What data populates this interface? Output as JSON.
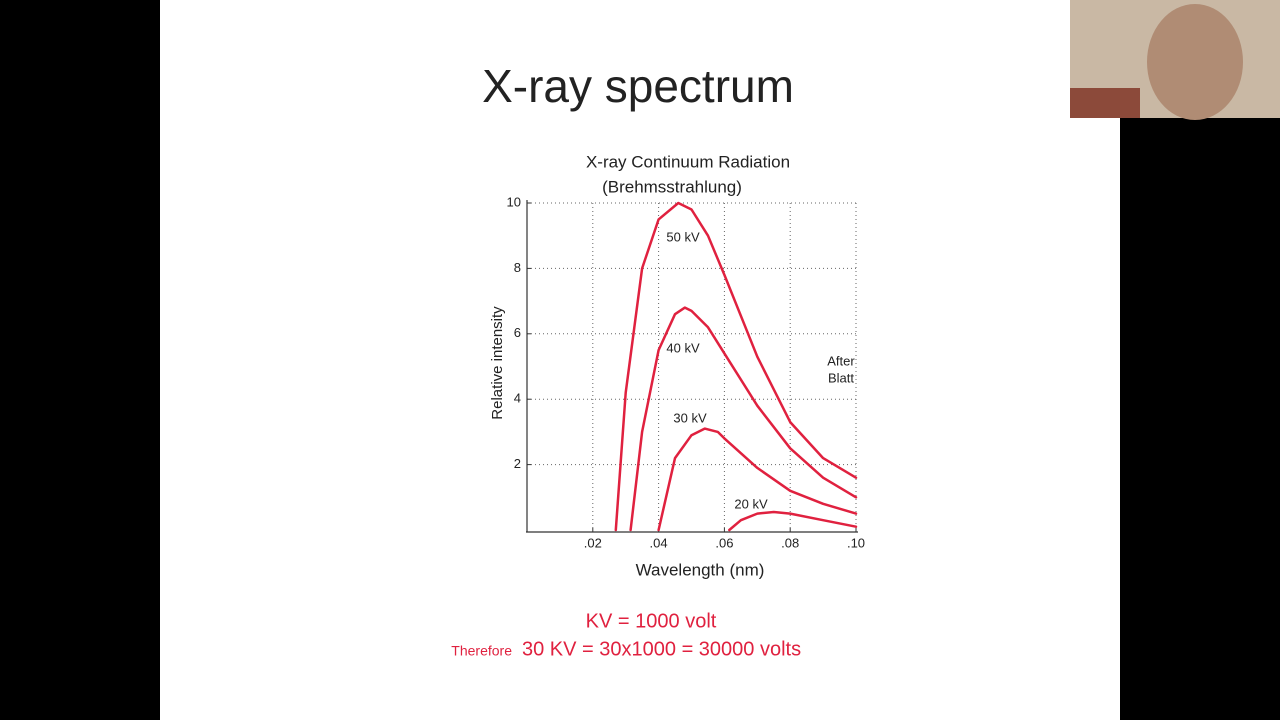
{
  "slide": {
    "title": "X-ray spectrum"
  },
  "chart_data": {
    "type": "line",
    "title": "X-ray Continuum Radiation",
    "subtitle": "(Brehmsstrahlung)",
    "x_label": "Wavelength (nm)",
    "y_label": "Relative intensity",
    "annotation": [
      "After",
      "Blatt"
    ],
    "xlim": [
      0,
      0.1
    ],
    "ylim": [
      0,
      10
    ],
    "xticks": [
      {
        "value": 0.02,
        "label": ".02"
      },
      {
        "value": 0.04,
        "label": ".04"
      },
      {
        "value": 0.06,
        "label": ".06"
      },
      {
        "value": 0.08,
        "label": ".08"
      },
      {
        "value": 0.1,
        "label": ".10"
      }
    ],
    "yticks": [
      2,
      4,
      6,
      8,
      10
    ],
    "grid": true,
    "series": [
      {
        "name": "50 kV",
        "color": "#e0213f",
        "x": [
          0.027,
          0.03,
          0.035,
          0.04,
          0.046,
          0.05,
          0.055,
          0.06,
          0.07,
          0.08,
          0.09,
          0.1
        ],
        "values": [
          0,
          4.2,
          8.0,
          9.5,
          10,
          9.8,
          9.0,
          7.8,
          5.3,
          3.3,
          2.2,
          1.6
        ]
      },
      {
        "name": "40 kV",
        "color": "#e0213f",
        "x": [
          0.0315,
          0.035,
          0.04,
          0.045,
          0.048,
          0.05,
          0.055,
          0.06,
          0.07,
          0.08,
          0.09,
          0.1
        ],
        "values": [
          0,
          3.0,
          5.5,
          6.6,
          6.8,
          6.7,
          6.2,
          5.4,
          3.8,
          2.5,
          1.6,
          1.0
        ]
      },
      {
        "name": "30 kV",
        "color": "#e0213f",
        "x": [
          0.04,
          0.045,
          0.05,
          0.054,
          0.058,
          0.06,
          0.07,
          0.08,
          0.09,
          0.1
        ],
        "values": [
          0,
          2.2,
          2.9,
          3.1,
          3.0,
          2.8,
          1.9,
          1.2,
          0.8,
          0.5
        ]
      },
      {
        "name": "20 kV",
        "color": "#e0213f",
        "x": [
          0.0615,
          0.065,
          0.07,
          0.075,
          0.08,
          0.09,
          0.1
        ],
        "values": [
          0,
          0.3,
          0.5,
          0.55,
          0.5,
          0.3,
          0.1
        ]
      }
    ]
  },
  "notes": {
    "line1": "KV = 1000 volt",
    "therefore": "Therefore",
    "line2": "30 KV = 30x1000 = 30000 volts"
  }
}
